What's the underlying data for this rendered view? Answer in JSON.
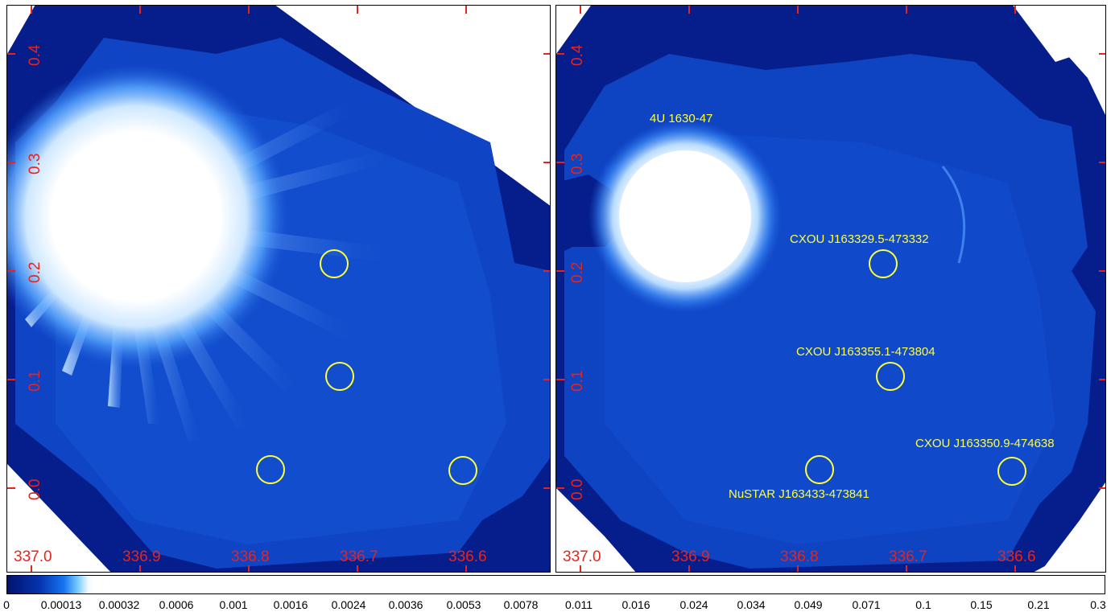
{
  "panels": [
    {
      "ticks_x": [
        "337.0",
        "336.9",
        "336.8",
        "336.7",
        "336.6"
      ],
      "ticks_y": [
        "0.4",
        "0.3",
        "0.2",
        "0.1",
        "0.0"
      ],
      "sources": []
    },
    {
      "ticks_x": [
        "337.0",
        "336.9",
        "336.8",
        "336.7",
        "336.6"
      ],
      "ticks_y": [
        "0.4",
        "0.3",
        "0.2",
        "0.1",
        "0.0"
      ],
      "sources": [
        {
          "label": "4U 1630-47"
        },
        {
          "label": "CXOU J163329.5-473332"
        },
        {
          "label": "CXOU J163355.1-473804"
        },
        {
          "label": "CXOU J163350.9-474638"
        },
        {
          "label": "NuSTAR J163433-473841"
        }
      ]
    }
  ],
  "colorbar": {
    "labels": [
      "0",
      "0.00013",
      "0.00032",
      "0.0006",
      "0.001",
      "0.0016",
      "0.0024",
      "0.0036",
      "0.0053",
      "0.0078",
      "0.011",
      "0.016",
      "0.024",
      "0.034",
      "0.049",
      "0.071",
      "0.1",
      "0.15",
      "0.21",
      "0.3"
    ]
  },
  "colors": {
    "background_dark": "#061e8c",
    "field": "#0f44c4",
    "bright": "#ffffff",
    "ticks": "#e8231d",
    "markers": "#ffff3a"
  }
}
